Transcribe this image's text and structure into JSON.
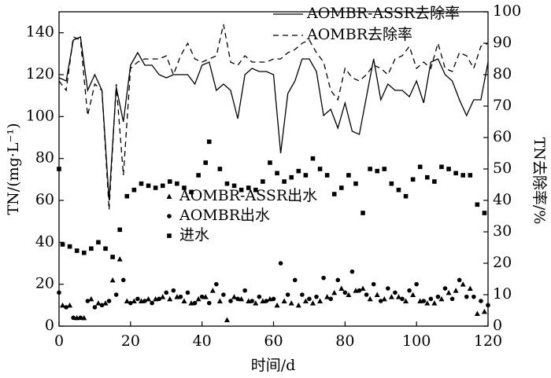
{
  "chart_data": {
    "type": "scatter-line",
    "xlabel": "时间/d",
    "ylabel": "TN/(mg·L⁻¹)",
    "y2label": "TN去除率/%",
    "xlim": [
      0,
      120
    ],
    "xticks": [
      0,
      20,
      40,
      60,
      80,
      100,
      120
    ],
    "ylim": [
      0,
      150
    ],
    "yticks": [
      0,
      20,
      40,
      60,
      80,
      100,
      120,
      140
    ],
    "y2lim": [
      0,
      100
    ],
    "y2ticks": [
      0,
      10,
      20,
      30,
      40,
      50,
      60,
      70,
      80,
      90,
      100
    ],
    "series": [
      {
        "name": "AOMBR-ASSR去除率",
        "kind": "line",
        "dash": "solid",
        "axis": "y2",
        "color": "#000000",
        "x": [
          0,
          2,
          4,
          6,
          8,
          10,
          12,
          14,
          16,
          18,
          20,
          22,
          24,
          26,
          28,
          30,
          32,
          34,
          36,
          38,
          40,
          42,
          44,
          46,
          48,
          50,
          52,
          54,
          56,
          58,
          60,
          62,
          64,
          66,
          68,
          70,
          72,
          74,
          76,
          78,
          80,
          82,
          84,
          86,
          88,
          90,
          92,
          94,
          96,
          98,
          100,
          102,
          104,
          106,
          108,
          110,
          112,
          114,
          116,
          118,
          120
        ],
        "values": [
          79,
          78,
          91,
          92,
          75,
          80,
          75,
          40,
          76,
          65,
          83,
          87,
          83,
          83,
          80,
          79,
          80,
          80,
          80,
          77,
          83,
          84,
          75,
          77,
          75,
          66,
          80,
          82,
          81,
          81,
          80,
          55,
          74,
          78,
          85,
          85,
          81,
          67,
          69,
          63,
          71,
          62,
          61,
          73,
          85,
          72,
          77,
          75,
          75,
          73,
          78,
          71,
          84,
          85,
          80,
          78,
          72,
          67,
          72,
          72,
          84
        ]
      },
      {
        "name": "AOMBR去除率",
        "kind": "line",
        "dash": "dashed",
        "axis": "y2",
        "color": "#000000",
        "x": [
          0,
          2,
          4,
          6,
          8,
          10,
          12,
          14,
          16,
          18,
          20,
          22,
          24,
          26,
          28,
          30,
          32,
          34,
          36,
          38,
          40,
          42,
          44,
          46,
          48,
          50,
          52,
          54,
          56,
          58,
          60,
          62,
          64,
          66,
          68,
          70,
          72,
          74,
          76,
          78,
          80,
          82,
          84,
          86,
          88,
          90,
          92,
          94,
          96,
          98,
          100,
          102,
          104,
          106,
          108,
          110,
          112,
          114,
          116,
          118,
          120
        ],
        "values": [
          78,
          75,
          92,
          91,
          67,
          77,
          75,
          37,
          77,
          48,
          82,
          84,
          85,
          85,
          85,
          86,
          80,
          86,
          90,
          85,
          84,
          85,
          86,
          96,
          84,
          83,
          86,
          84,
          84,
          84,
          85,
          85,
          87,
          88,
          90,
          91,
          87,
          84,
          75,
          72,
          82,
          79,
          78,
          80,
          83,
          82,
          80,
          85,
          86,
          89,
          82,
          84,
          82,
          90,
          82,
          81,
          87,
          86,
          82,
          89,
          90
        ]
      },
      {
        "name": "AOMBR-ASSR出水",
        "kind": "scatter",
        "marker": "triangle",
        "axis": "y",
        "color": "#000000",
        "x": [
          1,
          3,
          5,
          7,
          9,
          11,
          13,
          15,
          17,
          19,
          21,
          23,
          25,
          27,
          29,
          31,
          33,
          35,
          37,
          39,
          41,
          43,
          45,
          47,
          49,
          51,
          53,
          55,
          57,
          59,
          61,
          63,
          65,
          67,
          69,
          71,
          73,
          75,
          77,
          79,
          81,
          83,
          85,
          87,
          89,
          91,
          93,
          95,
          97,
          99,
          101,
          103,
          105,
          107,
          109,
          111,
          113,
          115,
          117,
          119
        ],
        "values": [
          10,
          10,
          4,
          4,
          13,
          11,
          11,
          22,
          32,
          12,
          12,
          12,
          13,
          13,
          14,
          13,
          14,
          12,
          11,
          13,
          14,
          17,
          12,
          3,
          14,
          13,
          12,
          11,
          12,
          13,
          10,
          12,
          11,
          10,
          12,
          11,
          12,
          14,
          16,
          18,
          15,
          17,
          18,
          13,
          15,
          13,
          14,
          14,
          12,
          15,
          12,
          11,
          11,
          13,
          16,
          17,
          20,
          18,
          6,
          7
        ]
      },
      {
        "name": "AOMBR出水",
        "kind": "scatter",
        "marker": "circle",
        "axis": "y",
        "color": "#000000",
        "x": [
          0,
          2,
          4,
          6,
          8,
          10,
          12,
          14,
          16,
          18,
          20,
          22,
          24,
          26,
          28,
          30,
          32,
          34,
          36,
          38,
          40,
          42,
          44,
          46,
          48,
          50,
          52,
          54,
          56,
          58,
          60,
          62,
          64,
          66,
          68,
          70,
          72,
          74,
          76,
          78,
          80,
          82,
          84,
          86,
          88,
          90,
          92,
          94,
          96,
          98,
          100,
          102,
          104,
          106,
          108,
          110,
          112,
          114,
          116,
          118,
          120
        ],
        "values": [
          16,
          9,
          4,
          4,
          12,
          9,
          10,
          12,
          15,
          22,
          11,
          13,
          12,
          11,
          13,
          16,
          17,
          14,
          16,
          11,
          14,
          11,
          20,
          15,
          12,
          13,
          17,
          12,
          14,
          12,
          13,
          30,
          15,
          22,
          15,
          13,
          14,
          23,
          13,
          22,
          16,
          26,
          17,
          15,
          20,
          12,
          18,
          16,
          13,
          17,
          20,
          12,
          13,
          14,
          18,
          13,
          22,
          14,
          14,
          12,
          10
        ]
      },
      {
        "name": "进水",
        "kind": "scatter",
        "marker": "square",
        "axis": "y",
        "color": "#000000",
        "x": [
          0,
          1,
          3,
          5,
          7,
          9,
          11,
          13,
          15,
          17,
          19,
          21,
          23,
          25,
          27,
          29,
          31,
          33,
          35,
          37,
          39,
          41,
          42,
          45,
          47,
          49,
          51,
          53,
          55,
          57,
          59,
          61,
          63,
          65,
          67,
          69,
          71,
          73,
          75,
          77,
          79,
          81,
          83,
          85,
          87,
          89,
          91,
          93,
          95,
          97,
          99,
          101,
          103,
          105,
          107,
          109,
          111,
          113,
          115,
          117,
          119
        ],
        "values": [
          75,
          39,
          38,
          36,
          35,
          37,
          40,
          37,
          33,
          46,
          62,
          65,
          68,
          67,
          66,
          67,
          69,
          68,
          66,
          64,
          72,
          78,
          88,
          75,
          68,
          67,
          65,
          66,
          65,
          69,
          78,
          73,
          69,
          71,
          74,
          72,
          80,
          75,
          72,
          63,
          66,
          72,
          68,
          54,
          75,
          74,
          75,
          68,
          65,
          62,
          70,
          76,
          71,
          69,
          76,
          75,
          73,
          72,
          72,
          58,
          54
        ]
      }
    ]
  }
}
